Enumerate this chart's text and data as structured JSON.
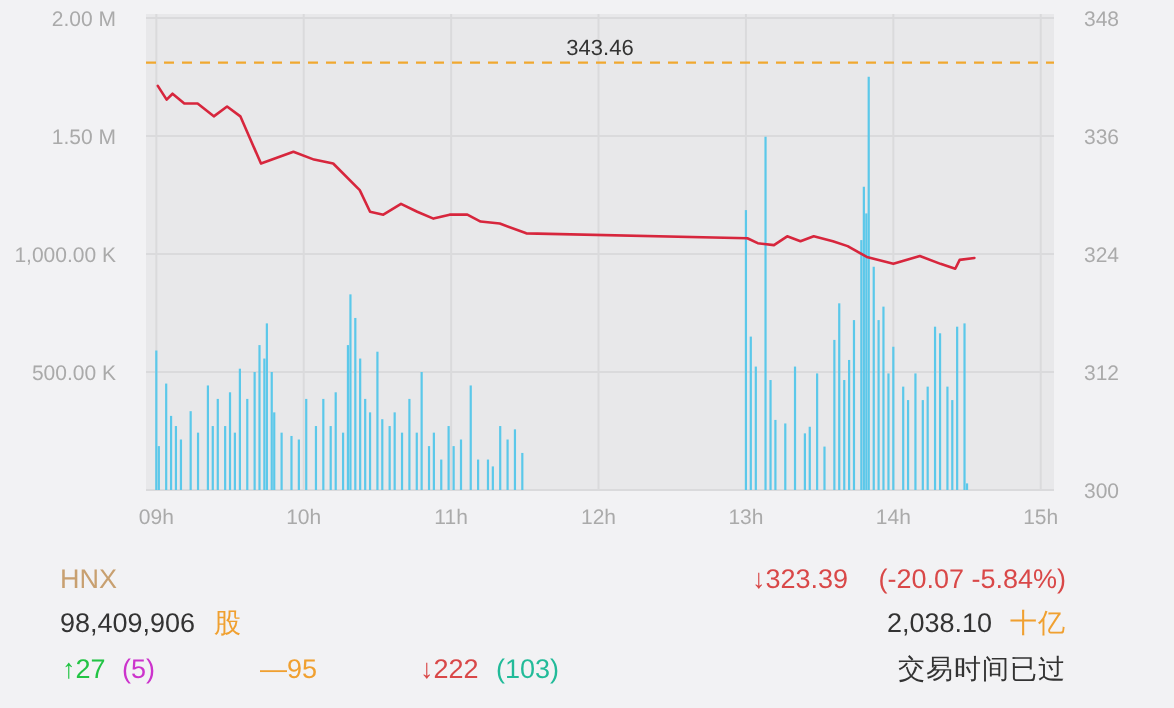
{
  "chart_data": [
    {
      "type": "bar",
      "grid": true,
      "xlim": [
        8.93,
        15.09
      ],
      "xticks": [
        {
          "value": 9,
          "label": "09h"
        },
        {
          "value": 10,
          "label": "10h"
        },
        {
          "value": 11,
          "label": "11h"
        },
        {
          "value": 12,
          "label": "12h"
        },
        {
          "value": 13,
          "label": "13h"
        },
        {
          "value": 14,
          "label": "14h"
        },
        {
          "value": 15,
          "label": "15h"
        }
      ],
      "ylim": [
        0,
        2000000
      ],
      "yticks": [
        {
          "value": 0,
          "label": null
        },
        {
          "value": 500000,
          "label": "500.00 K"
        },
        {
          "value": 1000000,
          "label": "1,000.00 K"
        },
        {
          "value": 1500000,
          "label": "1.50 M"
        },
        {
          "value": 2000000,
          "label": "2.00 M"
        }
      ],
      "y2lim": [
        300,
        348
      ],
      "y2ticks": [
        300,
        312,
        324,
        336,
        348
      ],
      "ref_lines": [
        {
          "axis": "y2",
          "value": 343.46,
          "label": "343.46",
          "color": "#f0a830",
          "line_style": "dashed"
        }
      ],
      "series": [
        {
          "type": "bar",
          "color": "#5bc8ea",
          "x": [
            9,
            9.017,
            9.067,
            9.1,
            9.133,
            9.167,
            9.233,
            9.283,
            9.35,
            9.383,
            9.417,
            9.467,
            9.5,
            9.533,
            9.567,
            9.617,
            9.667,
            9.7,
            9.733,
            9.75,
            9.783,
            9.8,
            9.85,
            9.917,
            9.967,
            10.017,
            10.083,
            10.133,
            10.183,
            10.217,
            10.267,
            10.3,
            10.317,
            10.35,
            10.383,
            10.417,
            10.45,
            10.5,
            10.533,
            10.583,
            10.617,
            10.667,
            10.717,
            10.767,
            10.8,
            10.85,
            10.883,
            10.933,
            10.983,
            11.017,
            11.067,
            11.133,
            11.183,
            11.25,
            11.283,
            11.333,
            11.383,
            11.433,
            11.483,
            13,
            13.033,
            13.067,
            13.133,
            13.167,
            13.2,
            13.267,
            13.333,
            13.4,
            13.433,
            13.483,
            13.533,
            13.6,
            13.633,
            13.667,
            13.7,
            13.733,
            13.783,
            13.8,
            13.817,
            13.833,
            13.867,
            13.9,
            13.933,
            13.967,
            14,
            14.067,
            14.1,
            14.15,
            14.2,
            14.233,
            14.283,
            14.317,
            14.367,
            14.4,
            14.433,
            14.483,
            14.5
          ],
          "values": [
            591000,
            186000,
            451000,
            314000,
            271000,
            214000,
            334000,
            243000,
            443000,
            271000,
            386000,
            271000,
            414000,
            243000,
            514000,
            386000,
            500000,
            614000,
            557000,
            706000,
            500000,
            329000,
            243000,
            229000,
            214000,
            386000,
            271000,
            386000,
            271000,
            414000,
            243000,
            614000,
            829000,
            729000,
            557000,
            386000,
            329000,
            586000,
            300000,
            271000,
            329000,
            243000,
            386000,
            243000,
            500000,
            186000,
            243000,
            129000,
            271000,
            186000,
            214000,
            443000,
            129000,
            129000,
            100000,
            271000,
            214000,
            257000,
            157000,
            1186000,
            650000,
            523000,
            1497000,
            466000,
            297000,
            282000,
            523000,
            240000,
            268000,
            494000,
            184000,
            636000,
            791000,
            466000,
            551000,
            720000,
            1059000,
            1285000,
            1172000,
            1751000,
            946000,
            720000,
            777000,
            494000,
            607000,
            438000,
            381000,
            494000,
            381000,
            438000,
            692000,
            664000,
            438000,
            381000,
            692000,
            706000,
            28000
          ]
        },
        {
          "type": "line",
          "axis": "y2",
          "color": "#d7263d",
          "x": [
            9.01,
            9.07,
            9.11,
            9.19,
            9.28,
            9.39,
            9.48,
            9.57,
            9.71,
            9.93,
            10.07,
            10.2,
            10.38,
            10.45,
            10.54,
            10.66,
            10.77,
            10.88,
            10.99,
            11.11,
            11.2,
            11.33,
            11.51,
            13.01,
            13.08,
            13.19,
            13.28,
            13.37,
            13.46,
            13.59,
            13.69,
            13.82,
            14.0,
            14.18,
            14.32,
            14.42,
            14.45,
            14.55
          ],
          "values": [
            341.1,
            339.7,
            340.3,
            339.3,
            339.3,
            338.0,
            339.0,
            338.0,
            333.2,
            334.4,
            333.6,
            333.2,
            330.5,
            328.3,
            328.0,
            329.1,
            328.3,
            327.6,
            328.0,
            328.0,
            327.3,
            327.1,
            326.1,
            325.6,
            325.1,
            324.9,
            325.8,
            325.3,
            325.8,
            325.3,
            324.8,
            323.7,
            323.0,
            323.8,
            323.0,
            322.5,
            323.4,
            323.6
          ]
        }
      ]
    },
    {
      "type": "other",
      "annotations": [
        "HNX",
        "98,409,906",
        "股",
        "↑27",
        "(5)",
        "—95",
        "↓222",
        "(103)",
        "↓323.39",
        "(-20.07  -5.84%)",
        "2,038.10",
        "十亿",
        "交易时间已过"
      ]
    }
  ]
}
